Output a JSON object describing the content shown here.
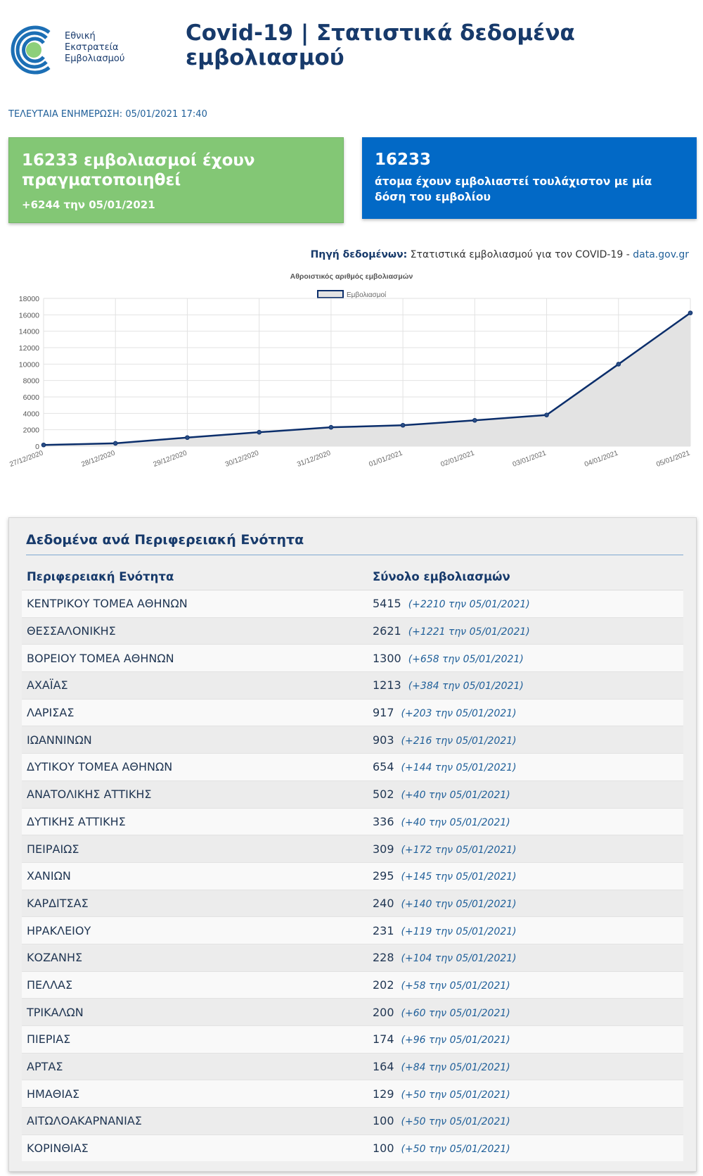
{
  "brand": {
    "logo_lines": [
      "Εθνική",
      "Εκστρατεία",
      "Εμβολιασμού"
    ]
  },
  "header": {
    "title": "Covid-19 | Στατιστικά δεδομένα εμβολιασμού"
  },
  "last_update": "ΤΕΛΕΥΤΑΙΑ ΕΝΗΜΕΡΩΣΗ: 05/01/2021 17:40",
  "cards": {
    "total": {
      "headline": "16233 εμβολιασμοί έχουν πραγματοποιηθεί",
      "delta": "+6244 την 05/01/2021"
    },
    "people": {
      "count": "16233",
      "text": "άτομα έχουν εμβολιαστεί τουλάχιστον με μία δόση του εμβολίου"
    }
  },
  "source": {
    "label": "Πηγή δεδομένων:",
    "text": "Στατιστικά εμβολιασμού για τον COVID-19 -",
    "link": "data.gov.gr"
  },
  "chart_data": {
    "type": "area",
    "title": "Αθροιστικός αριθμός εμβολιασμών",
    "legend_position": "top",
    "grid": true,
    "ylim": [
      0,
      18000
    ],
    "yticks": [
      0,
      2000,
      4000,
      6000,
      8000,
      10000,
      12000,
      14000,
      16000,
      18000
    ],
    "x": [
      "27/12/2020",
      "28/12/2020",
      "29/12/2020",
      "30/12/2020",
      "31/12/2020",
      "01/01/2021",
      "02/01/2021",
      "03/01/2021",
      "04/01/2021",
      "05/01/2021"
    ],
    "series": [
      {
        "name": "Εμβολιασμοί",
        "values": [
          150,
          350,
          1050,
          1700,
          2300,
          2550,
          3150,
          3800,
          9990,
          16233
        ],
        "line_color": "#0b2e6b",
        "fill_color": "#e3e3e3"
      }
    ]
  },
  "regions": {
    "title": "Δεδομένα ανά Περιφερειακή Ενότητα",
    "columns": [
      "Περιφερειακή Ενότητα",
      "Σύνολο εμβολιασμών"
    ],
    "rows": [
      {
        "name": "ΚΕΝΤΡΙΚΟΥ ΤΟΜΕΑ ΑΘΗΝΩΝ",
        "total": "5415",
        "delta": "(+2210 την 05/01/2021)"
      },
      {
        "name": "ΘΕΣΣΑΛΟΝΙΚΗΣ",
        "total": "2621",
        "delta": "(+1221 την 05/01/2021)"
      },
      {
        "name": "ΒΟΡΕΙΟΥ ΤΟΜΕΑ ΑΘΗΝΩΝ",
        "total": "1300",
        "delta": "(+658 την 05/01/2021)"
      },
      {
        "name": "ΑΧΑΪΑΣ",
        "total": "1213",
        "delta": "(+384 την 05/01/2021)"
      },
      {
        "name": "ΛΑΡΙΣΑΣ",
        "total": "917",
        "delta": "(+203 την 05/01/2021)"
      },
      {
        "name": "ΙΩΑΝΝΙΝΩΝ",
        "total": "903",
        "delta": "(+216 την 05/01/2021)"
      },
      {
        "name": "ΔΥΤΙΚΟΥ ΤΟΜΕΑ ΑΘΗΝΩΝ",
        "total": "654",
        "delta": "(+144 την 05/01/2021)"
      },
      {
        "name": "ΑΝΑΤΟΛΙΚΗΣ ΑΤΤΙΚΗΣ",
        "total": "502",
        "delta": "(+40 την 05/01/2021)"
      },
      {
        "name": "ΔΥΤΙΚΗΣ ΑΤΤΙΚΗΣ",
        "total": "336",
        "delta": "(+40 την 05/01/2021)"
      },
      {
        "name": "ΠΕΙΡΑΙΩΣ",
        "total": "309",
        "delta": "(+172 την 05/01/2021)"
      },
      {
        "name": "ΧΑΝΙΩΝ",
        "total": "295",
        "delta": "(+145 την 05/01/2021)"
      },
      {
        "name": "ΚΑΡΔΙΤΣΑΣ",
        "total": "240",
        "delta": "(+140 την 05/01/2021)"
      },
      {
        "name": "ΗΡΑΚΛΕΙΟΥ",
        "total": "231",
        "delta": "(+119 την 05/01/2021)"
      },
      {
        "name": "ΚΟΖΑΝΗΣ",
        "total": "228",
        "delta": "(+104 την 05/01/2021)"
      },
      {
        "name": "ΠΕΛΛΑΣ",
        "total": "202",
        "delta": "(+58 την 05/01/2021)"
      },
      {
        "name": "ΤΡΙΚΑΛΩΝ",
        "total": "200",
        "delta": "(+60 την 05/01/2021)"
      },
      {
        "name": "ΠΙΕΡΙΑΣ",
        "total": "174",
        "delta": "(+96 την 05/01/2021)"
      },
      {
        "name": "ΑΡΤΑΣ",
        "total": "164",
        "delta": "(+84 την 05/01/2021)"
      },
      {
        "name": "ΗΜΑΘΙΑΣ",
        "total": "129",
        "delta": "(+50 την 05/01/2021)"
      },
      {
        "name": "ΑΙΤΩΛΟΑΚΑΡΝΑΝΙΑΣ",
        "total": "100",
        "delta": "(+50 την 05/01/2021)"
      },
      {
        "name": "ΚΟΡΙΝΘΙΑΣ",
        "total": "100",
        "delta": "(+50 την 05/01/2021)"
      }
    ]
  }
}
